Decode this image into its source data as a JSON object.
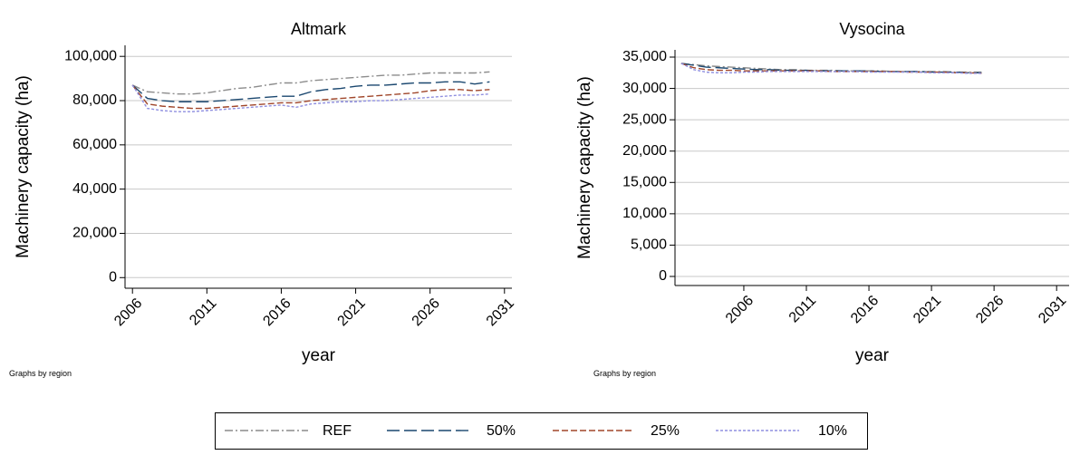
{
  "chart_data": [
    {
      "type": "line",
      "title": "Altmark",
      "x_label": "year",
      "y_label": "Machinery capacity (ha)",
      "note": "Graphs by region",
      "x": [
        2006,
        2007,
        2008,
        2009,
        2010,
        2011,
        2012,
        2013,
        2014,
        2015,
        2016,
        2017,
        2018,
        2019,
        2020,
        2021,
        2022,
        2023,
        2024,
        2025,
        2026,
        2027,
        2028,
        2029,
        2030
      ],
      "xlim": [
        2005.5,
        2031.5
      ],
      "xticks": [
        2006,
        2011,
        2016,
        2021,
        2026,
        2031
      ],
      "ylim": [
        -4800,
        105000
      ],
      "yticks": [
        0,
        {
          "value": 20000,
          "label": "20,000"
        },
        {
          "value": 40000,
          "label": "40,000"
        },
        {
          "value": 60000,
          "label": "60,000"
        },
        {
          "value": 80000,
          "label": "80,000"
        },
        {
          "value": 100000,
          "label": "100,000"
        }
      ],
      "grid": true,
      "series": [
        {
          "name": "REF",
          "color": "#8c8c8c",
          "dash": "9 3 2 3",
          "values": [
            87000,
            84000,
            83500,
            83000,
            83000,
            83500,
            84500,
            85500,
            86000,
            87000,
            88000,
            88000,
            89000,
            89500,
            90000,
            90500,
            91000,
            91500,
            91500,
            92000,
            92500,
            92500,
            92500,
            92500,
            93000
          ]
        },
        {
          "name": "50%",
          "color": "#1a476f",
          "dash": "14 5",
          "values": [
            87000,
            81000,
            80000,
            79500,
            79500,
            79500,
            80000,
            80500,
            81000,
            81500,
            82000,
            82000,
            84000,
            85000,
            85500,
            86500,
            87000,
            87000,
            87500,
            88000,
            88000,
            88500,
            88500,
            87500,
            88500
          ]
        },
        {
          "name": "25%",
          "color": "#a0462a",
          "dash": "7 3",
          "values": [
            87000,
            78500,
            77500,
            77000,
            76500,
            76500,
            77000,
            77500,
            78000,
            78500,
            79000,
            79000,
            80000,
            80500,
            81000,
            81500,
            82000,
            82500,
            83000,
            83500,
            84500,
            85000,
            85000,
            84500,
            85000
          ]
        },
        {
          "name": "10%",
          "color": "#8f8fe0",
          "dash": "3 2",
          "values": [
            87000,
            76500,
            75500,
            75000,
            75000,
            75500,
            76000,
            76500,
            77000,
            77500,
            78000,
            77000,
            78500,
            79000,
            79500,
            79500,
            80000,
            80000,
            80500,
            81000,
            81500,
            82000,
            82500,
            82500,
            83000
          ]
        }
      ]
    },
    {
      "type": "line",
      "title": "Vysocina",
      "x_label": "year",
      "y_label": "Machinery capacity (ha)",
      "note": "Graphs by region",
      "x": [
        2001,
        2002,
        2003,
        2004,
        2005,
        2006,
        2007,
        2008,
        2009,
        2010,
        2011,
        2012,
        2013,
        2014,
        2015,
        2016,
        2017,
        2018,
        2019,
        2020,
        2021,
        2022,
        2023,
        2024,
        2025
      ],
      "xlim": [
        2000.5,
        2032
      ],
      "xticks": [
        2006,
        2011,
        2016,
        2021,
        2026,
        2031
      ],
      "ylim": [
        -1446,
        36157
      ],
      "yticks": [
        0,
        {
          "value": 5000,
          "label": "5,000"
        },
        {
          "value": 10000,
          "label": "10,000"
        },
        {
          "value": 15000,
          "label": "15,000"
        },
        {
          "value": 20000,
          "label": "20,000"
        },
        {
          "value": 25000,
          "label": "25,000"
        },
        {
          "value": 30000,
          "label": "30,000"
        },
        {
          "value": 35000,
          "label": "35,000"
        }
      ],
      "grid": true,
      "series": [
        {
          "color": "#8c8c8c",
          "dash": "9 3 2 3",
          "values": [
            34000,
            33800,
            33600,
            33500,
            33400,
            33300,
            33200,
            33100,
            33000,
            33000,
            32900,
            32900,
            32900,
            32800,
            32800,
            32800,
            32800,
            32700,
            32700,
            32700,
            32700,
            32700,
            32600,
            32600,
            32600
          ]
        },
        {
          "color": "#1a476f",
          "dash": "14 5",
          "values": [
            34000,
            33700,
            33400,
            33300,
            33200,
            33100,
            33000,
            33000,
            32900,
            32900,
            32900,
            32800,
            32800,
            32800,
            32800,
            32800,
            32700,
            32700,
            32700,
            32700,
            32600,
            32600,
            32600,
            32500,
            32500
          ]
        },
        {
          "color": "#a0462a",
          "dash": "7 3",
          "values": [
            34000,
            33300,
            33000,
            32900,
            32900,
            32800,
            32800,
            32800,
            32800,
            32800,
            32800,
            32800,
            32700,
            32700,
            32700,
            32700,
            32700,
            32700,
            32600,
            32600,
            32600,
            32600,
            32500,
            32500,
            32400
          ]
        },
        {
          "color": "#8f8fe0",
          "dash": "3 2",
          "values": [
            34000,
            33000,
            32600,
            32500,
            32500,
            32600,
            32600,
            32700,
            32700,
            32700,
            32700,
            32700,
            32700,
            32700,
            32700,
            32600,
            32600,
            32600,
            32600,
            32600,
            32500,
            32500,
            32500,
            32400,
            32400
          ]
        }
      ]
    }
  ]
}
